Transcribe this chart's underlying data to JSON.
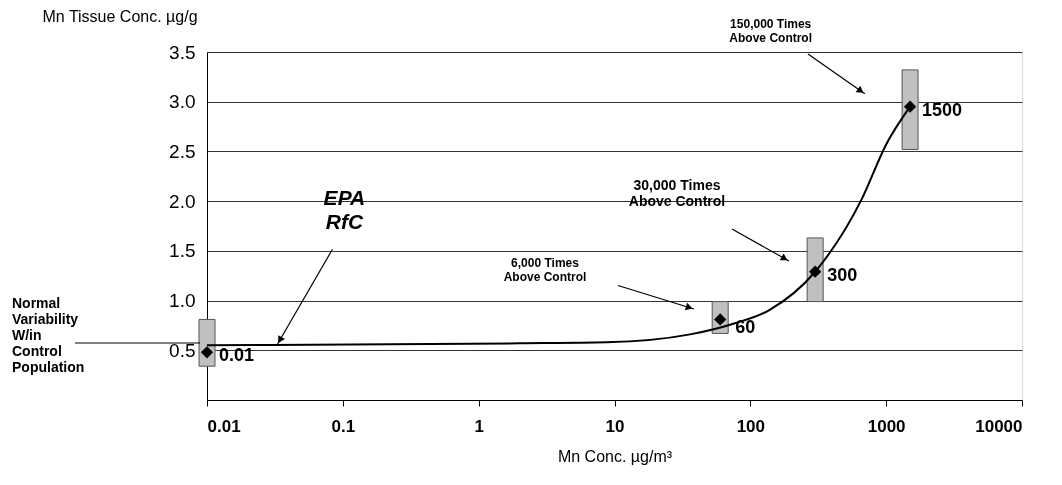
{
  "chart_data": {
    "type": "scatter",
    "xlabel": "Mn Conc. µg/m³",
    "ylabel": "Mn Tissue Conc. µg/g",
    "x": [
      0.01,
      60,
      300,
      1500
    ],
    "series": [
      {
        "type": "bar",
        "color": "#c0c0c0",
        "base": [
          0.34,
          0.67,
          0.99,
          2.52
        ],
        "values": [
          0.47,
          0.32,
          0.64,
          0.8
        ]
      },
      {
        "color": "#000000",
        "marker": "diamond",
        "values": [
          0.48,
          0.81,
          1.29,
          2.95
        ]
      },
      {
        "type": "line",
        "color": "#000000",
        "marker": "none",
        "line_style": "solid",
        "x": [
          0.01,
          2,
          8.7,
          36,
          76,
          136,
          300,
          661,
          1000,
          1500
        ],
        "values": [
          0.55,
          0.57,
          0.58,
          0.66,
          0.77,
          0.9,
          1.29,
          2.02,
          2.57,
          2.95
        ]
      }
    ],
    "log": "x",
    "xlim": [
      0.01,
      10000
    ],
    "xticks": [
      0.01,
      0.1,
      1,
      10,
      100,
      1000,
      10000
    ],
    "ylim": [
      0,
      3.5
    ],
    "yticks": [
      0.5,
      {
        "value": 1,
        "label": "1.0"
      },
      1.5,
      {
        "value": 2,
        "label": "2.0"
      },
      2.5,
      {
        "value": 3,
        "label": "3.0"
      },
      3.5
    ],
    "grid": "y",
    "annotations": [
      {
        "text": "EPA\nRfC",
        "x": 0.033,
        "y": 0.56
      },
      "Normal\nVariability\nW/in\nControl\nPopulation",
      "6,000 Times\nAbove Control",
      "30,000 Times\nAbove Control",
      "150,000 Times\nAbove Control",
      {
        "text": "0.01",
        "x": 0.01,
        "y": 0.48
      },
      {
        "text": "60",
        "x": 60,
        "y": 0.81
      },
      {
        "text": "300",
        "x": 300,
        "y": 1.29
      },
      {
        "text": "1500",
        "x": 1500,
        "y": 2.95
      }
    ]
  }
}
